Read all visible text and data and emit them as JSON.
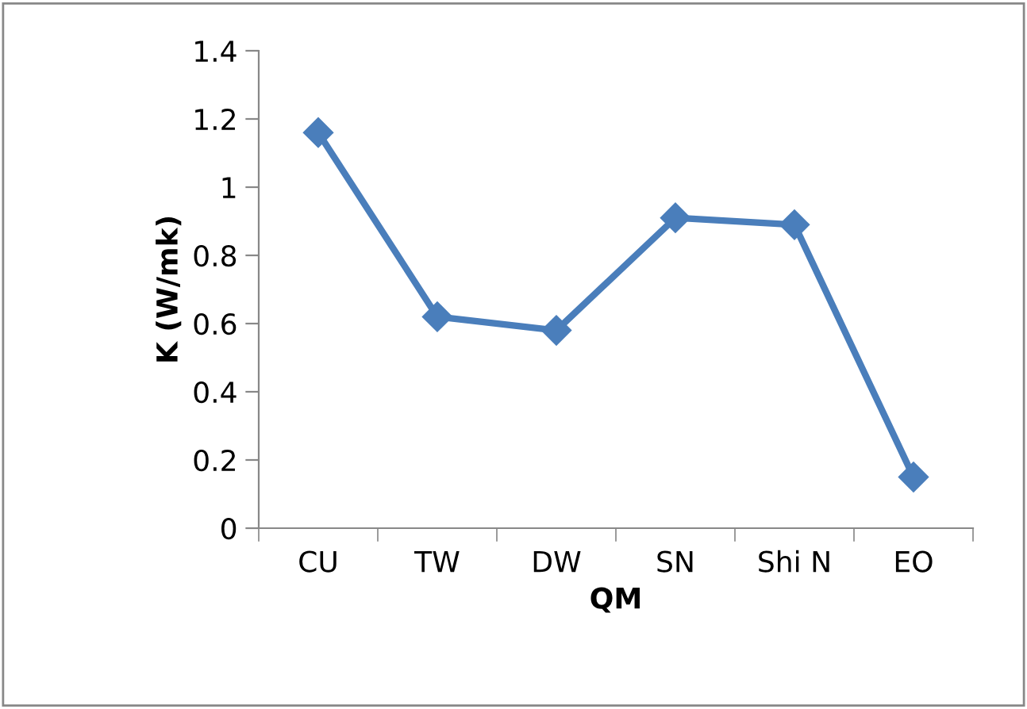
{
  "chart_data": {
    "type": "line",
    "xlabel": "QM",
    "ylabel": "K (W/mk)",
    "categories": [
      "CU",
      "TW",
      "DW",
      "SN",
      "Shi N",
      "EO"
    ],
    "series": [
      {
        "color": "#4a7ebb",
        "values": [
          1.16,
          0.62,
          0.58,
          0.91,
          0.89,
          0.15
        ]
      }
    ],
    "ylim": [
      0,
      1.4
    ],
    "yticks": [
      0,
      0.2,
      0.4,
      0.6,
      0.8,
      1,
      1.2,
      1.4
    ],
    "marker": "diamond",
    "line_style": "solid",
    "grid": false
  }
}
